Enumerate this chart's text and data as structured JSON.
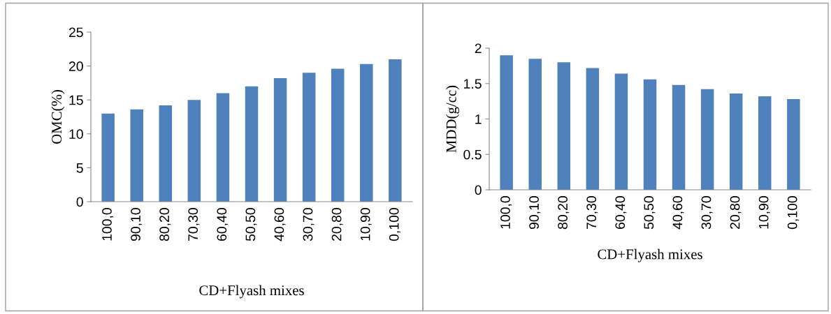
{
  "chart_data": [
    {
      "type": "bar",
      "ylabel": "OMC(%)",
      "xlabel": "CD+Flyash mixes",
      "categories": [
        "100,0",
        "90,10",
        "80,20",
        "70,30",
        "60,40",
        "50,50",
        "40,60",
        "30,70",
        "20,80",
        "10,90",
        "0,100"
      ],
      "values": [
        13,
        13.6,
        14.2,
        15,
        16,
        17,
        18.2,
        19,
        19.6,
        20.3,
        21
      ],
      "color": "#4f81bd",
      "ylim": [
        0,
        25
      ],
      "yticks": [
        0,
        5,
        10,
        15,
        20,
        25
      ],
      "grid": false,
      "legend": false
    },
    {
      "type": "bar",
      "ylabel": "MDD(g/cc)",
      "xlabel": "CD+Flyash mixes",
      "categories": [
        "100,0",
        "90,10",
        "80,20",
        "70,30",
        "60,40",
        "50,50",
        "40,60",
        "30,70",
        "20,80",
        "10,90",
        "0,100"
      ],
      "values": [
        1.9,
        1.85,
        1.8,
        1.72,
        1.64,
        1.56,
        1.48,
        1.42,
        1.36,
        1.32,
        1.28
      ],
      "color": "#4f81bd",
      "ylim": [
        0,
        2
      ],
      "yticks": [
        0,
        0.5,
        1,
        1.5,
        2
      ],
      "grid": false,
      "legend": false
    }
  ]
}
